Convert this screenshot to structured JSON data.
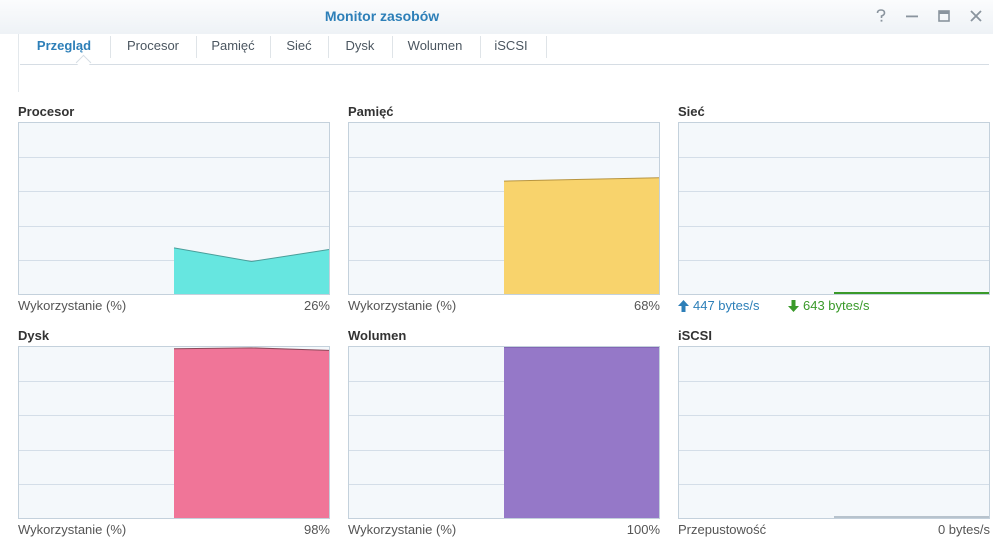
{
  "window": {
    "title": "Monitor zasobów",
    "controls": [
      "help-icon",
      "minimize-icon",
      "maximize-icon",
      "close-icon"
    ]
  },
  "tabs": [
    {
      "label": "Przegląd",
      "active": true
    },
    {
      "label": "Procesor",
      "active": false
    },
    {
      "label": "Pamięć",
      "active": false
    },
    {
      "label": "Sieć",
      "active": false
    },
    {
      "label": "Dysk",
      "active": false
    },
    {
      "label": "Wolumen",
      "active": false
    },
    {
      "label": "iSCSI",
      "active": false
    }
  ],
  "panels": {
    "cpu": {
      "title": "Procesor",
      "metric_label": "Wykorzystanie (%)",
      "value": "26%",
      "color": "#66e6e0",
      "stroke": "#4a9e9a",
      "series": [
        null,
        null,
        27,
        19,
        26
      ]
    },
    "memory": {
      "title": "Pamięć",
      "metric_label": "Wykorzystanie (%)",
      "value": "68%",
      "color": "#f8d36c",
      "stroke": "#b89540",
      "series": [
        null,
        null,
        66,
        67,
        68
      ]
    },
    "network": {
      "title": "Sieć",
      "upload": "447 bytes/s",
      "download": "643 bytes/s",
      "up_color": "#2d7fb8",
      "down_color": "#3a9a2a",
      "series": [
        null,
        null,
        0.5,
        0.5,
        0.5
      ]
    },
    "disk": {
      "title": "Dysk",
      "metric_label": "Wykorzystanie (%)",
      "value": "98%",
      "color": "#f07598",
      "stroke": "#8a4a5a",
      "series": [
        null,
        null,
        99,
        99.5,
        98
      ]
    },
    "volume": {
      "title": "Wolumen",
      "metric_label": "Wykorzystanie (%)",
      "value": "100%",
      "color": "#9578c8",
      "stroke": "#6f55a0",
      "series": [
        null,
        null,
        100,
        100,
        100
      ]
    },
    "iscsi": {
      "title": "iSCSI",
      "metric_label": "Przepustowość",
      "value": "0 bytes/s",
      "series": [
        null,
        null,
        0,
        0,
        0
      ]
    }
  }
}
